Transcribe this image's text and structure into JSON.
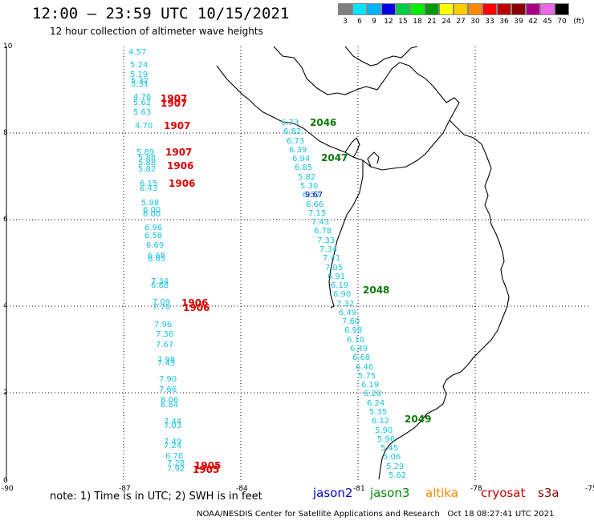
{
  "header": {
    "title": "12:00 – 23:59 UTC 10/15/2021",
    "subtitle": "12 hour collection of altimeter wave heights"
  },
  "legend": {
    "colors": [
      "#7f7f7f",
      "#00e5ff",
      "#00b4ff",
      "#0000dd",
      "#00cc44",
      "#00ee00",
      "#009900",
      "#ffff00",
      "#ffcc00",
      "#ff8800",
      "#ff0000",
      "#bb0000",
      "#880000",
      "#aa0088",
      "#ee66ee",
      "#000000"
    ],
    "labels": [
      "3",
      "6",
      "9",
      "12",
      "15",
      "18",
      "21",
      "24",
      "27",
      "30",
      "33",
      "36",
      "39",
      "42",
      "45",
      "70",
      "(ft)"
    ]
  },
  "axes": {
    "x_ticks": [
      "-90",
      "-87",
      "-84",
      "-81",
      "-78",
      "-75"
    ],
    "y_ticks": [
      "0",
      "2",
      "4",
      "6",
      "8",
      "10"
    ]
  },
  "tracks": {
    "west_cyan": [
      "4.57",
      "5.24",
      "5.19",
      "5.32",
      "5.31",
      "4.76",
      "5.62",
      "5.63",
      "4.70",
      "5.89",
      "5.88",
      "5.88",
      "5.82",
      "6.15",
      "6.43",
      "5.98",
      "6.00",
      "6.00",
      "6.96",
      "6.58",
      "6.69",
      "6.65",
      "6.65",
      "7.34",
      "6.88",
      "7.09",
      "7.78",
      "7.96",
      "7.36",
      "7.67",
      "7.98",
      "7.43",
      "7.90",
      "7.66",
      "8.06",
      "6.84",
      "7.44",
      "7.03",
      "7.49",
      "7.24",
      "6.76",
      "7.28",
      "7.92"
    ],
    "west_red": [
      "1907",
      "1907",
      "1907",
      "1907",
      "1906",
      "1906",
      "1906",
      "1906",
      "1905",
      "1905"
    ],
    "east_cyan": [
      "6.73",
      "6.82",
      "6.73",
      "6.39",
      "6.94",
      "6.85",
      "5.82",
      "5.30",
      "6.57",
      "6.66",
      "7.15",
      "7.43",
      "6.78",
      "7.33",
      "7.34",
      "7.41",
      "7.05",
      "6.91",
      "6.19",
      "6.90",
      "7.32",
      "6.49",
      "7.60",
      "6.98",
      "6.10",
      "6.49",
      "6.68",
      "6.46",
      "5.75",
      "6.19",
      "6.20",
      "6.24",
      "5.35",
      "6.12",
      "5.90",
      "5.96",
      "5.45",
      "5.06",
      "5.29",
      "5.62"
    ],
    "east_blue": [
      "9.67"
    ],
    "green": [
      "2046",
      "2047",
      "2048",
      "2049"
    ]
  },
  "footer": {
    "note": "note: 1) Time is in UTC; 2) SWH is in feet",
    "satellites": [
      {
        "name": "jason2",
        "color": "#0000cc"
      },
      {
        "name": "jason3",
        "color": "#008800"
      },
      {
        "name": "altika",
        "color": "#ff8800"
      },
      {
        "name": "cryosat",
        "color": "#cc0000"
      },
      {
        "name": "s3a",
        "color": "#880000"
      }
    ],
    "credit": "NOAA/NESDIS Center for Satellite Applications and Research   Oct 18 08:27:41 UTC 2021"
  }
}
